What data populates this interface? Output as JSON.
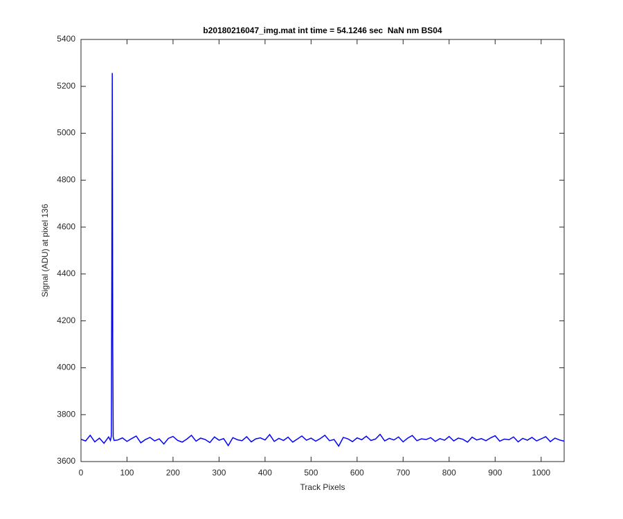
{
  "chart_data": {
    "type": "line",
    "title": "b20180216047_img.mat int time = 54.1246 sec  NaN nm BS04",
    "xlabel": "Track Pixels",
    "ylabel": "Signal (ADU) at pixel 136",
    "color": "#0000ff",
    "x": [
      0,
      10,
      20,
      30,
      40,
      50,
      60,
      64,
      66,
      67,
      68,
      69,
      70,
      72,
      80,
      90,
      100,
      110,
      120,
      130,
      140,
      150,
      160,
      170,
      180,
      190,
      200,
      210,
      220,
      230,
      240,
      250,
      260,
      270,
      280,
      290,
      300,
      310,
      320,
      330,
      340,
      350,
      360,
      370,
      380,
      390,
      400,
      410,
      420,
      430,
      440,
      450,
      460,
      470,
      480,
      490,
      500,
      510,
      520,
      530,
      540,
      550,
      560,
      570,
      580,
      590,
      600,
      610,
      620,
      630,
      640,
      650,
      660,
      670,
      680,
      690,
      700,
      710,
      720,
      730,
      740,
      750,
      760,
      770,
      780,
      790,
      800,
      810,
      820,
      830,
      840,
      850,
      860,
      870,
      880,
      890,
      900,
      910,
      920,
      930,
      940,
      950,
      960,
      970,
      980,
      990,
      1000,
      1010,
      1020,
      1030,
      1040,
      1050
    ],
    "values": [
      3695,
      3688,
      3712,
      3684,
      3700,
      3678,
      3705,
      3690,
      3710,
      4400,
      5257,
      4100,
      3705,
      3690,
      3692,
      3701,
      3686,
      3698,
      3709,
      3680,
      3694,
      3703,
      3688,
      3697,
      3675,
      3699,
      3707,
      3690,
      3683,
      3696,
      3712,
      3687,
      3700,
      3694,
      3681,
      3705,
      3691,
      3698,
      3668,
      3702,
      3693,
      3689,
      3706,
      3684,
      3697,
      3701,
      3692,
      3715,
      3686,
      3699,
      3690,
      3704,
      3683,
      3696,
      3709,
      3691,
      3700,
      3687,
      3698,
      3712,
      3689,
      3694,
      3666,
      3703,
      3697,
      3685,
      3701,
      3693,
      3708,
      3690,
      3696,
      3716,
      3688,
      3699,
      3692,
      3705,
      3684,
      3700,
      3711,
      3689,
      3697,
      3694,
      3702,
      3686,
      3698,
      3691,
      3707,
      3688,
      3700,
      3695,
      3683,
      3704,
      3692,
      3698,
      3689,
      3701,
      3710,
      3687,
      3696,
      3693,
      3705,
      3684,
      3699,
      3691,
      3703,
      3688,
      3697,
      3706,
      3685,
      3700,
      3692,
      3687
    ],
    "xlim": [
      0,
      1050
    ],
    "ylim": [
      3600,
      5400
    ],
    "xticks": [
      0,
      100,
      200,
      300,
      400,
      500,
      600,
      700,
      800,
      900,
      1000
    ],
    "yticks": [
      3600,
      3800,
      4000,
      4200,
      4400,
      4600,
      4800,
      5000,
      5200,
      5400
    ]
  }
}
